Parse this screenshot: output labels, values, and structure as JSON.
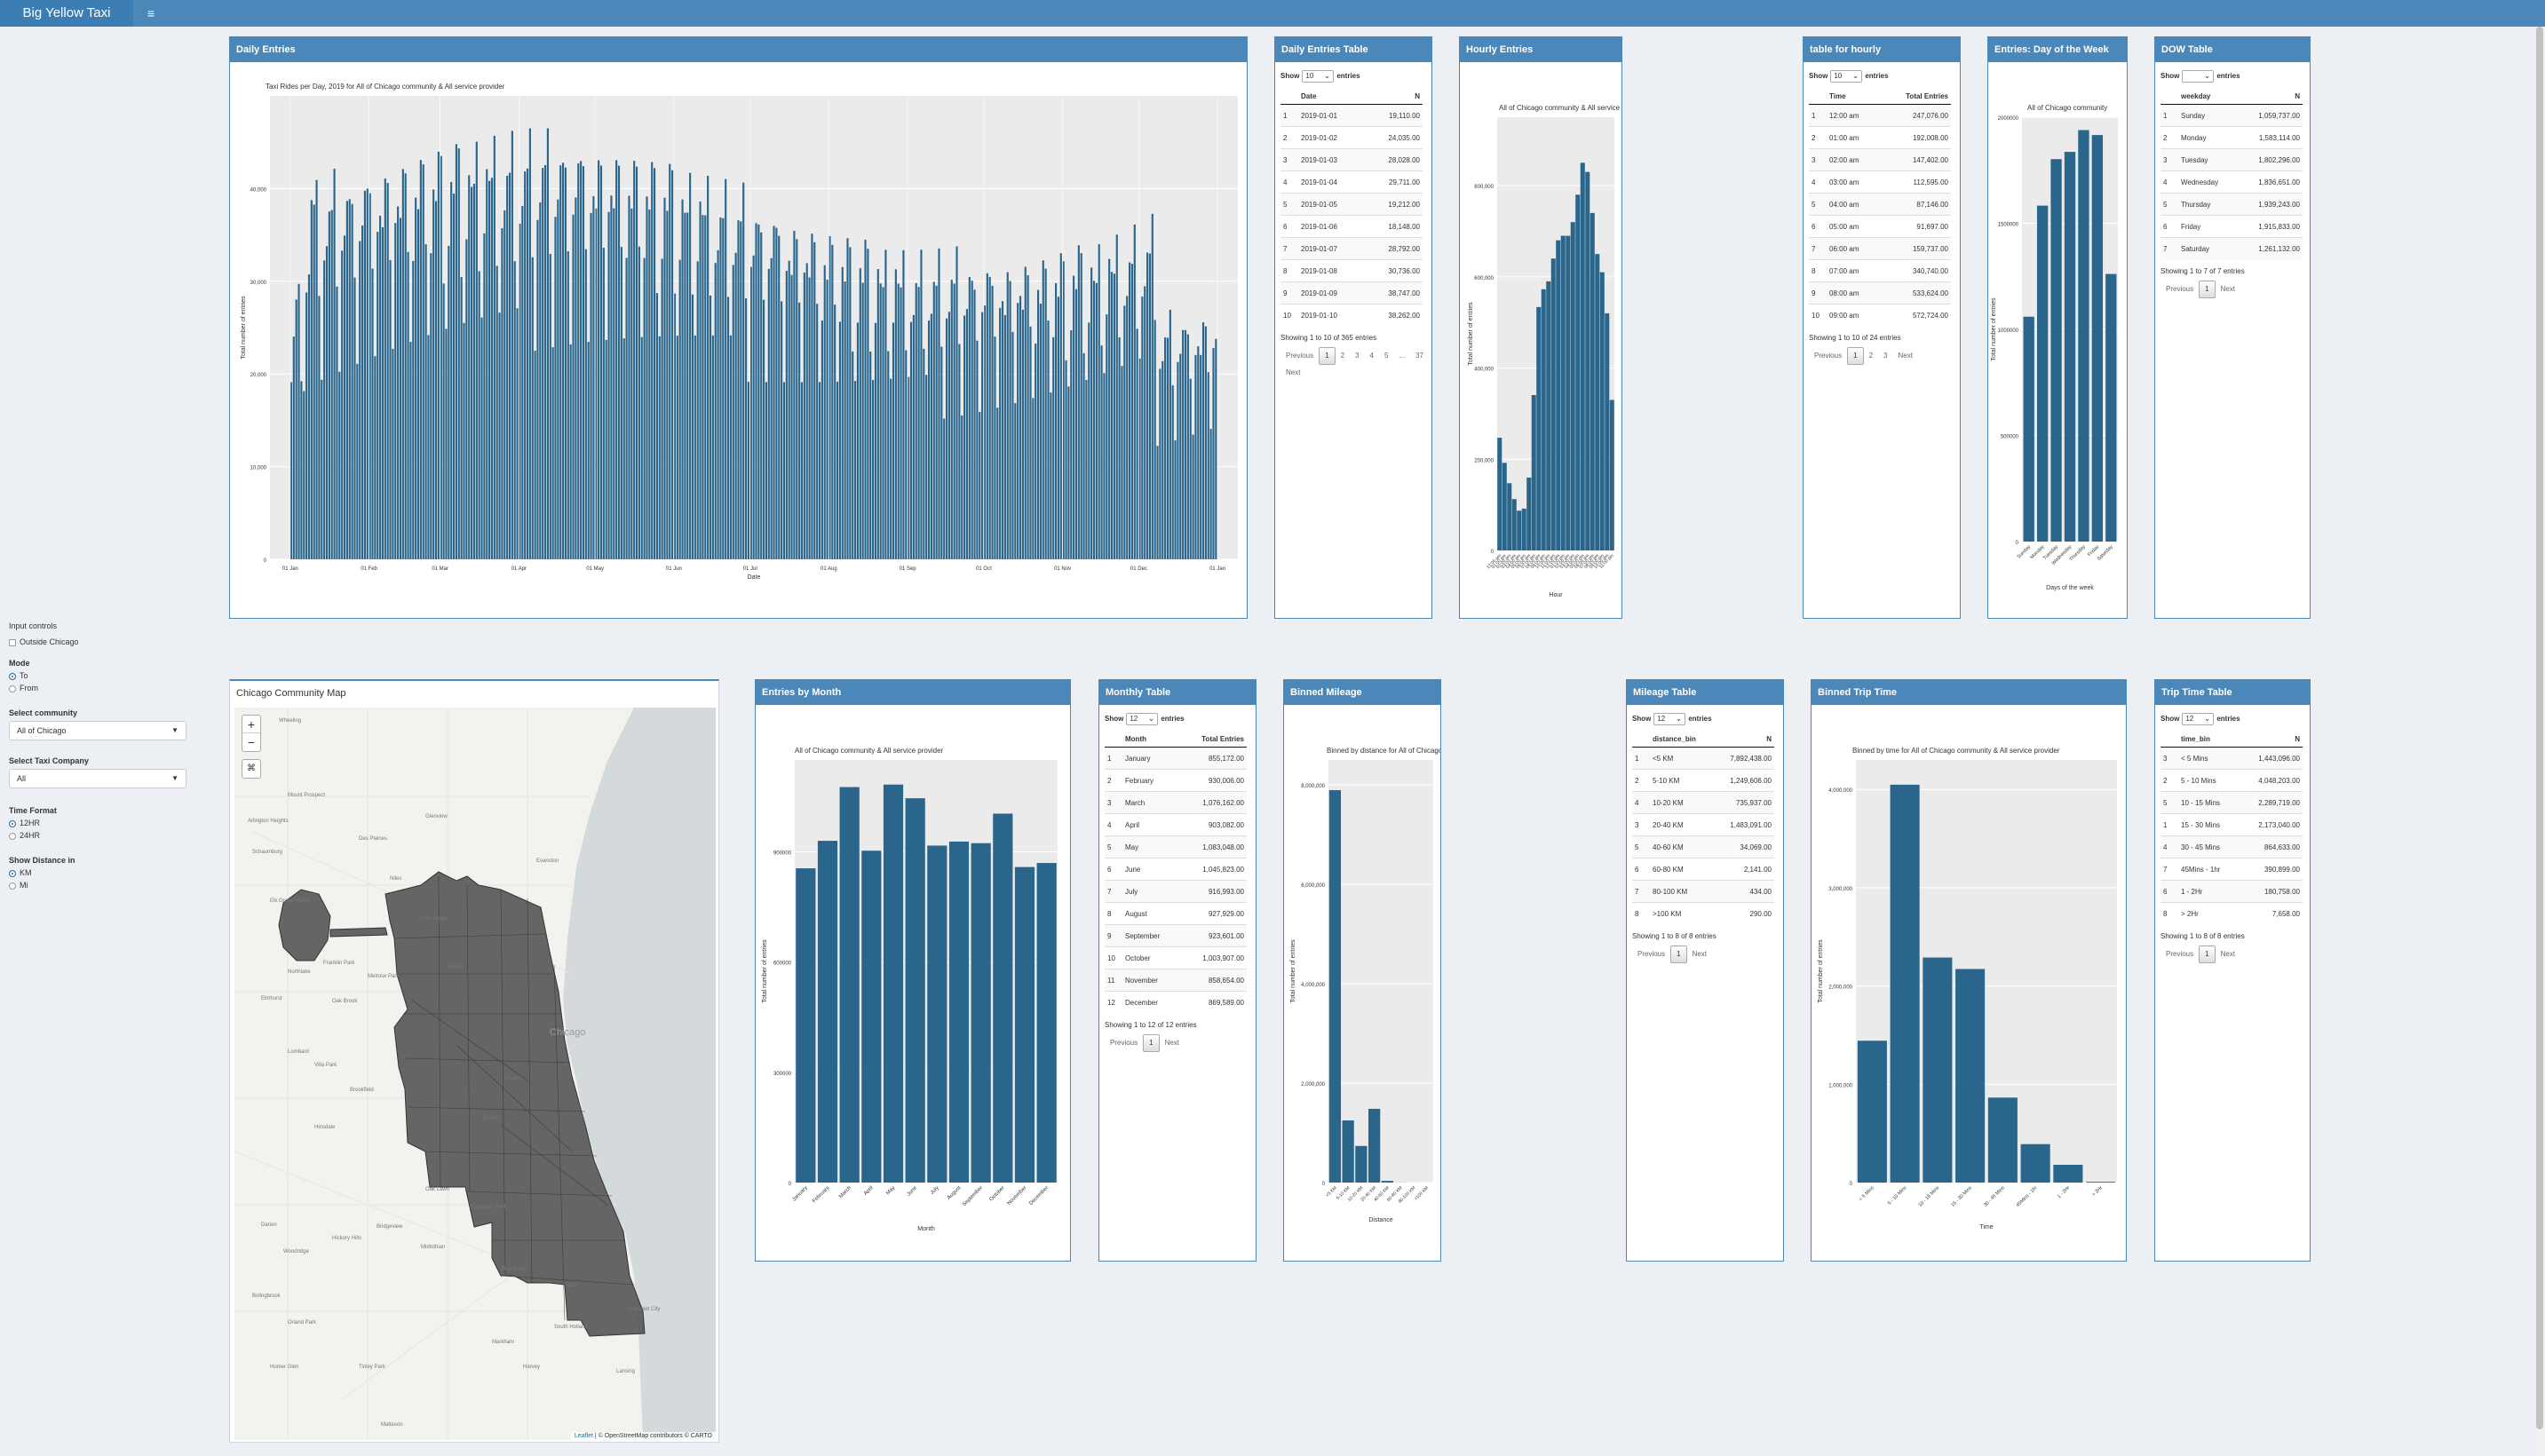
{
  "app": {
    "title": "Big Yellow Taxi",
    "menu_icon": "hamburger-icon"
  },
  "colors": {
    "header": "#4c87b9",
    "bar": "#2a668c",
    "panel_bg": "#ebebeb",
    "page_bg": "#ecf0f5"
  },
  "sidebar": {
    "input_controls_label": "Input controls",
    "outside_chicago_label": "Outside Chicago",
    "mode_label": "Mode",
    "mode_options": [
      "To",
      "From"
    ],
    "community_label": "Select community",
    "community_value": "All of Chicago",
    "company_label": "Select Taxi Company",
    "company_value": "All",
    "time_format_label": "Time Format",
    "time_format_options": [
      "12HR",
      "24HR"
    ],
    "distance_label": "Show Distance in",
    "distance_options": [
      "KM",
      "Mi"
    ]
  },
  "dt_labels": {
    "show": "Show",
    "entries": "entries",
    "previous": "Previous",
    "next": "Next"
  },
  "daily": {
    "title": "Daily Entries",
    "chart_data": {
      "type": "bar",
      "title": "Taxi Rides per Day, 2019 for  All of Chicago  community &  All  service provider",
      "xlabel": "Date",
      "ylabel": "Total number of entries",
      "ylim": [
        0,
        50000
      ],
      "yticks": [
        "0",
        "10,000",
        "20,000",
        "30,000",
        "40,000"
      ],
      "xticks": [
        "01 Jan",
        "01 Feb",
        "01 Mar",
        "01 Apr",
        "01 May",
        "01 Jun",
        "01 Jul",
        "01 Aug",
        "01 Sep",
        "01 Oct",
        "01 Nov",
        "01 Dec",
        "01 Jan"
      ],
      "x_start": "2019-01-01",
      "n_days": 365,
      "values": [
        19110,
        24035,
        28028,
        29711,
        19212,
        18148,
        28792,
        30736,
        38747,
        38262
      ]
    }
  },
  "daily_table": {
    "title": "Daily Entries Table",
    "length": "10",
    "columns": [
      "",
      "Date",
      "N"
    ],
    "rows": [
      [
        "1",
        "2019-01-01",
        "19,110.00"
      ],
      [
        "2",
        "2019-01-02",
        "24,035.00"
      ],
      [
        "3",
        "2019-01-03",
        "28,028.00"
      ],
      [
        "4",
        "2019-01-04",
        "29,711.00"
      ],
      [
        "5",
        "2019-01-05",
        "19,212.00"
      ],
      [
        "6",
        "2019-01-06",
        "18,148.00"
      ],
      [
        "7",
        "2019-01-07",
        "28,792.00"
      ],
      [
        "8",
        "2019-01-08",
        "30,736.00"
      ],
      [
        "9",
        "2019-01-09",
        "38,747.00"
      ],
      [
        "10",
        "2019-01-10",
        "38,262.00"
      ]
    ],
    "info": "Showing 1 to 10 of 365 entries",
    "pages": [
      "1",
      "2",
      "3",
      "4",
      "5",
      "...",
      "37"
    ]
  },
  "hourly": {
    "title": "Hourly Entries",
    "chart_data": {
      "type": "bar",
      "title": "All of Chicago  community &  All  service provider",
      "xlabel": "Hour",
      "ylabel": "Total number of entries",
      "ylim": [
        0,
        950000
      ],
      "yticks": [
        "0",
        "200,000",
        "400,000",
        "600,000",
        "800,000"
      ],
      "categories": [
        "12:00 am",
        "01:00 am",
        "02:00 am",
        "03:00 am",
        "04:00 am",
        "05:00 am",
        "06:00 am",
        "07:00 am",
        "08:00 am",
        "09:00 am",
        "10:00 am",
        "11:00 am",
        "12:00 pm",
        "01:00 pm",
        "02:00 pm",
        "03:00 pm",
        "04:00 pm",
        "05:00 pm",
        "06:00 pm",
        "07:00 pm",
        "08:00 pm",
        "09:00 pm",
        "10:00 pm",
        "11:00 pm"
      ],
      "values": [
        247076,
        192008,
        147402,
        112595,
        87146,
        91697,
        159737,
        340740,
        533624,
        572724,
        590000,
        640000,
        680000,
        690000,
        690000,
        720000,
        780000,
        850000,
        830000,
        740000,
        650000,
        610000,
        520000,
        330000
      ]
    }
  },
  "hourly_table": {
    "title": "table for hourly",
    "length": "10",
    "columns": [
      "",
      "Time",
      "Total Entries"
    ],
    "rows": [
      [
        "1",
        "12:00 am",
        "247,076.00"
      ],
      [
        "2",
        "01:00 am",
        "192,008.00"
      ],
      [
        "3",
        "02:00 am",
        "147,402.00"
      ],
      [
        "4",
        "03:00 am",
        "112,595.00"
      ],
      [
        "5",
        "04:00 am",
        "87,146.00"
      ],
      [
        "6",
        "05:00 am",
        "91,697.00"
      ],
      [
        "7",
        "06:00 am",
        "159,737.00"
      ],
      [
        "8",
        "07:00 am",
        "340,740.00"
      ],
      [
        "9",
        "08:00 am",
        "533,624.00"
      ],
      [
        "10",
        "09:00 am",
        "572,724.00"
      ]
    ],
    "info": "Showing 1 to 10 of 24 entries",
    "pages": [
      "1",
      "2",
      "3"
    ]
  },
  "dow": {
    "title": "Entries: Day of the Week",
    "chart_data": {
      "type": "bar",
      "title": "All of Chicago  community",
      "xlabel": "Days of the week",
      "ylabel": "Total number of entries",
      "ylim": [
        0,
        2000000
      ],
      "yticks": [
        "0",
        "500000",
        "1000000",
        "1500000",
        "2000000"
      ],
      "categories": [
        "Sunday",
        "Monday",
        "Tuesday",
        "Wednesday",
        "Thursday",
        "Friday",
        "Saturday"
      ],
      "values": [
        1059737,
        1583114,
        1802296,
        1836651,
        1939243,
        1915833,
        1261132
      ]
    }
  },
  "dow_table": {
    "title": "DOW Table",
    "length": "",
    "columns": [
      "",
      "weekday",
      "N"
    ],
    "rows": [
      [
        "1",
        "Sunday",
        "1,059,737.00"
      ],
      [
        "2",
        "Monday",
        "1,583,114.00"
      ],
      [
        "3",
        "Tuesday",
        "1,802,296.00"
      ],
      [
        "4",
        "Wednesday",
        "1,836,651.00"
      ],
      [
        "5",
        "Thursday",
        "1,939,243.00"
      ],
      [
        "6",
        "Friday",
        "1,915,833.00"
      ],
      [
        "7",
        "Saturday",
        "1,261,132.00"
      ]
    ],
    "info": "Showing 1 to 7 of 7 entries",
    "pages": [
      "1"
    ]
  },
  "map": {
    "title": "Chicago Community Map",
    "zoom_in": "+",
    "zoom_out": "−",
    "home": "⌘",
    "attr_leaflet": "Leaflet",
    "attr_rest": "| © OpenStreetMap contributors © CARTO",
    "places": [
      {
        "name": "Wheeling"
      },
      {
        "name": "Mount Prospect"
      },
      {
        "name": "Des Plaines"
      },
      {
        "name": "Evanston"
      },
      {
        "name": "Niles"
      },
      {
        "name": "Elk Grove Village"
      },
      {
        "name": "Franklin Park"
      },
      {
        "name": "Northlake"
      },
      {
        "name": "Elmhurst"
      },
      {
        "name": "Oak Brook"
      },
      {
        "name": "Cicero"
      },
      {
        "name": "Brookfield"
      },
      {
        "name": "Chicago"
      },
      {
        "name": "Oak Lawn"
      },
      {
        "name": "Bridgeview"
      },
      {
        "name": "Evergreen Park"
      },
      {
        "name": "Blue Island"
      },
      {
        "name": "Dolton"
      },
      {
        "name": "Calumet City"
      },
      {
        "name": "South Holland"
      },
      {
        "name": "Harvey"
      },
      {
        "name": "Tinley Park"
      },
      {
        "name": "Orland Park"
      },
      {
        "name": "Homer Glen"
      },
      {
        "name": "Lansing"
      },
      {
        "name": "Darien"
      },
      {
        "name": "Woodridge"
      },
      {
        "name": "Hinsdale"
      },
      {
        "name": "Hickory Hills"
      },
      {
        "name": "Bolingbrook"
      },
      {
        "name": "Lombard"
      },
      {
        "name": "Villa Park"
      },
      {
        "name": "Schaumburg"
      },
      {
        "name": "Arlington Heights"
      },
      {
        "name": "Glenview"
      },
      {
        "name": "Skokie"
      },
      {
        "name": "Park Ridge"
      },
      {
        "name": "Melrose Park"
      },
      {
        "name": "Berwyn"
      },
      {
        "name": "Midlothian"
      },
      {
        "name": "Markham"
      },
      {
        "name": "Matteson"
      }
    ]
  },
  "monthly": {
    "title": "Entries by Month",
    "chart_data": {
      "type": "bar",
      "title": "All of Chicago  community &  All  service provider",
      "xlabel": "Month",
      "ylabel": "Total number of entries",
      "ylim": [
        0,
        1150000
      ],
      "yticks": [
        "0",
        "300000",
        "600000",
        "900000"
      ],
      "categories": [
        "January",
        "February",
        "March",
        "April",
        "May",
        "June",
        "July",
        "August",
        "September",
        "October",
        "November",
        "December"
      ],
      "values": [
        855172,
        930006,
        1076162,
        903082,
        1083048,
        1045823,
        916993,
        927929,
        923601,
        1003907,
        858654,
        869589
      ]
    }
  },
  "monthly_table": {
    "title": "Monthly Table",
    "length": "12",
    "columns": [
      "",
      "Month",
      "Total Entries"
    ],
    "rows": [
      [
        "1",
        "January",
        "855,172.00"
      ],
      [
        "2",
        "February",
        "930,006.00"
      ],
      [
        "3",
        "March",
        "1,076,162.00"
      ],
      [
        "4",
        "April",
        "903,082.00"
      ],
      [
        "5",
        "May",
        "1,083,048.00"
      ],
      [
        "6",
        "June",
        "1,045,823.00"
      ],
      [
        "7",
        "July",
        "916,993.00"
      ],
      [
        "8",
        "August",
        "927,929.00"
      ],
      [
        "9",
        "September",
        "923,601.00"
      ],
      [
        "10",
        "October",
        "1,003,907.00"
      ],
      [
        "11",
        "November",
        "858,654.00"
      ],
      [
        "12",
        "December",
        "869,589.00"
      ]
    ],
    "info": "Showing 1 to 12 of 12 entries",
    "pages": [
      "1"
    ]
  },
  "mileage": {
    "title": "Binned Mileage",
    "chart_data": {
      "type": "bar",
      "title": "Binned by distance for All of Chicago  community &  All  service provider",
      "xlabel": "Distance",
      "ylabel": "Total number of entries",
      "ylim": [
        0,
        8500000
      ],
      "yticks": [
        "0",
        "2,000,000",
        "4,000,000",
        "6,000,000",
        "8,000,000"
      ],
      "categories": [
        "<5 KM",
        "5-10 KM",
        "10-20 KM",
        "20-40 KM",
        "40-60 KM",
        "60-80 KM",
        "80-100 KM",
        ">100 KM"
      ],
      "values": [
        7892438,
        1249606,
        735937,
        1483091,
        34069,
        2141,
        434,
        290
      ]
    }
  },
  "mileage_table": {
    "title": "Mileage Table",
    "length": "12",
    "columns": [
      "",
      "distance_bin",
      "N"
    ],
    "rows": [
      [
        "1",
        "<5 KM",
        "7,892,438.00"
      ],
      [
        "2",
        "5-10 KM",
        "1,249,606.00"
      ],
      [
        "4",
        "10-20 KM",
        "735,937.00"
      ],
      [
        "3",
        "20-40 KM",
        "1,483,091.00"
      ],
      [
        "5",
        "40-60 KM",
        "34,069.00"
      ],
      [
        "6",
        "60-80 KM",
        "2,141.00"
      ],
      [
        "7",
        "80-100 KM",
        "434.00"
      ],
      [
        "8",
        ">100 KM",
        "290.00"
      ]
    ],
    "info": "Showing 1 to 8 of 8 entries",
    "pages": [
      "1"
    ]
  },
  "triptime": {
    "title": "Binned Trip Time",
    "chart_data": {
      "type": "bar",
      "title": "Binned by time for All of Chicago  community &  All  service provider",
      "xlabel": "Time",
      "ylabel": "Total number of entries",
      "ylim": [
        0,
        4300000
      ],
      "yticks": [
        "0",
        "1,000,000",
        "2,000,000",
        "3,000,000",
        "4,000,000"
      ],
      "categories": [
        "< 5 Mins",
        "5 - 10 Mins",
        "10 - 15 Mins",
        "15 - 30 Mins",
        "30 - 45 Mins",
        "45Mins - 1hr",
        "1 - 2Hr",
        "> 2Hr"
      ],
      "values": [
        1443096,
        4048203,
        2289719,
        2173040,
        864633,
        390899,
        180758,
        7658
      ]
    }
  },
  "triptime_table": {
    "title": "Trip Time Table",
    "length": "12",
    "columns": [
      "",
      "time_bin",
      "N"
    ],
    "rows": [
      [
        "3",
        "< 5 Mins",
        "1,443,096.00"
      ],
      [
        "2",
        "5 - 10 Mins",
        "4,048,203.00"
      ],
      [
        "5",
        "10 - 15 Mins",
        "2,289,719.00"
      ],
      [
        "1",
        "15 - 30 Mins",
        "2,173,040.00"
      ],
      [
        "4",
        "30 - 45 Mins",
        "864,633.00"
      ],
      [
        "7",
        "45Mins - 1hr",
        "390,899.00"
      ],
      [
        "6",
        "1 - 2Hr",
        "180,758.00"
      ],
      [
        "8",
        "> 2Hr",
        "7,658.00"
      ]
    ],
    "info": "Showing 1 to 8 of 8 entries",
    "pages": [
      "1"
    ]
  }
}
